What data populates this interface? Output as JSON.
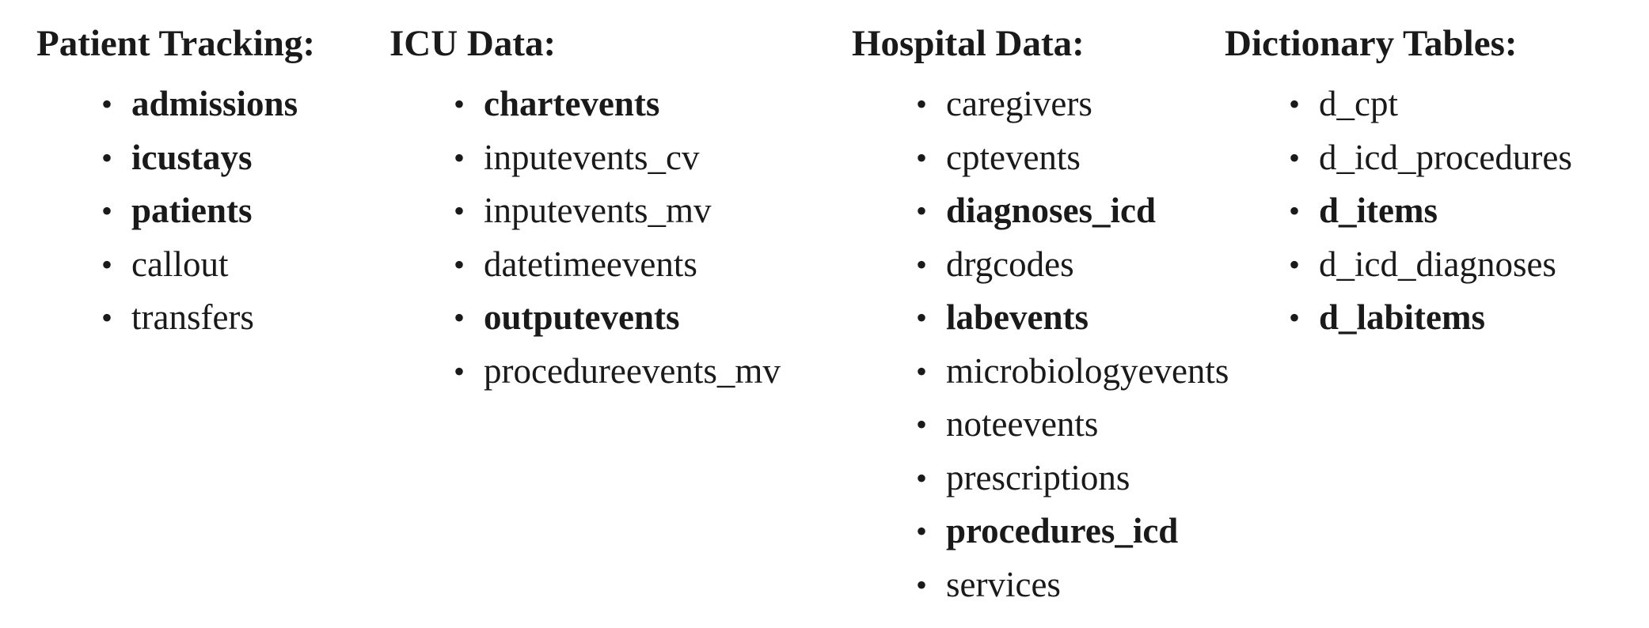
{
  "columns": [
    {
      "id": "col-patient",
      "title": "Patient Tracking:",
      "items": [
        {
          "label": "admissions",
          "bold": true
        },
        {
          "label": "icustays",
          "bold": true
        },
        {
          "label": "patients",
          "bold": true
        },
        {
          "label": "callout",
          "bold": false
        },
        {
          "label": "transfers",
          "bold": false
        }
      ]
    },
    {
      "id": "col-icu",
      "title": "ICU Data:",
      "items": [
        {
          "label": "chartevents",
          "bold": true
        },
        {
          "label": "inputevents_cv",
          "bold": false
        },
        {
          "label": "inputevents_mv",
          "bold": false
        },
        {
          "label": "datetimeevents",
          "bold": false
        },
        {
          "label": "outputevents",
          "bold": true
        },
        {
          "label": "procedureevents_mv",
          "bold": false
        }
      ]
    },
    {
      "id": "col-hospital",
      "title": "Hospital Data:",
      "items": [
        {
          "label": "caregivers",
          "bold": false
        },
        {
          "label": "cptevents",
          "bold": false
        },
        {
          "label": "diagnoses_icd",
          "bold": true
        },
        {
          "label": "drgcodes",
          "bold": false
        },
        {
          "label": "labevents",
          "bold": true
        },
        {
          "label": "microbiologyevents",
          "bold": false
        },
        {
          "label": "noteevents",
          "bold": false
        },
        {
          "label": "prescriptions",
          "bold": false
        },
        {
          "label": "procedures_icd",
          "bold": true
        },
        {
          "label": "services",
          "bold": false
        }
      ]
    },
    {
      "id": "col-dict",
      "title": "Dictionary Tables:",
      "items": [
        {
          "label": "d_cpt",
          "bold": false
        },
        {
          "label": "d_icd_procedures",
          "bold": false
        },
        {
          "label": "d_items",
          "bold": true
        },
        {
          "label": "d_icd_diagnoses",
          "bold": false
        },
        {
          "label": "d_labitems",
          "bold": true
        }
      ]
    }
  ],
  "bullet_glyph": "•"
}
